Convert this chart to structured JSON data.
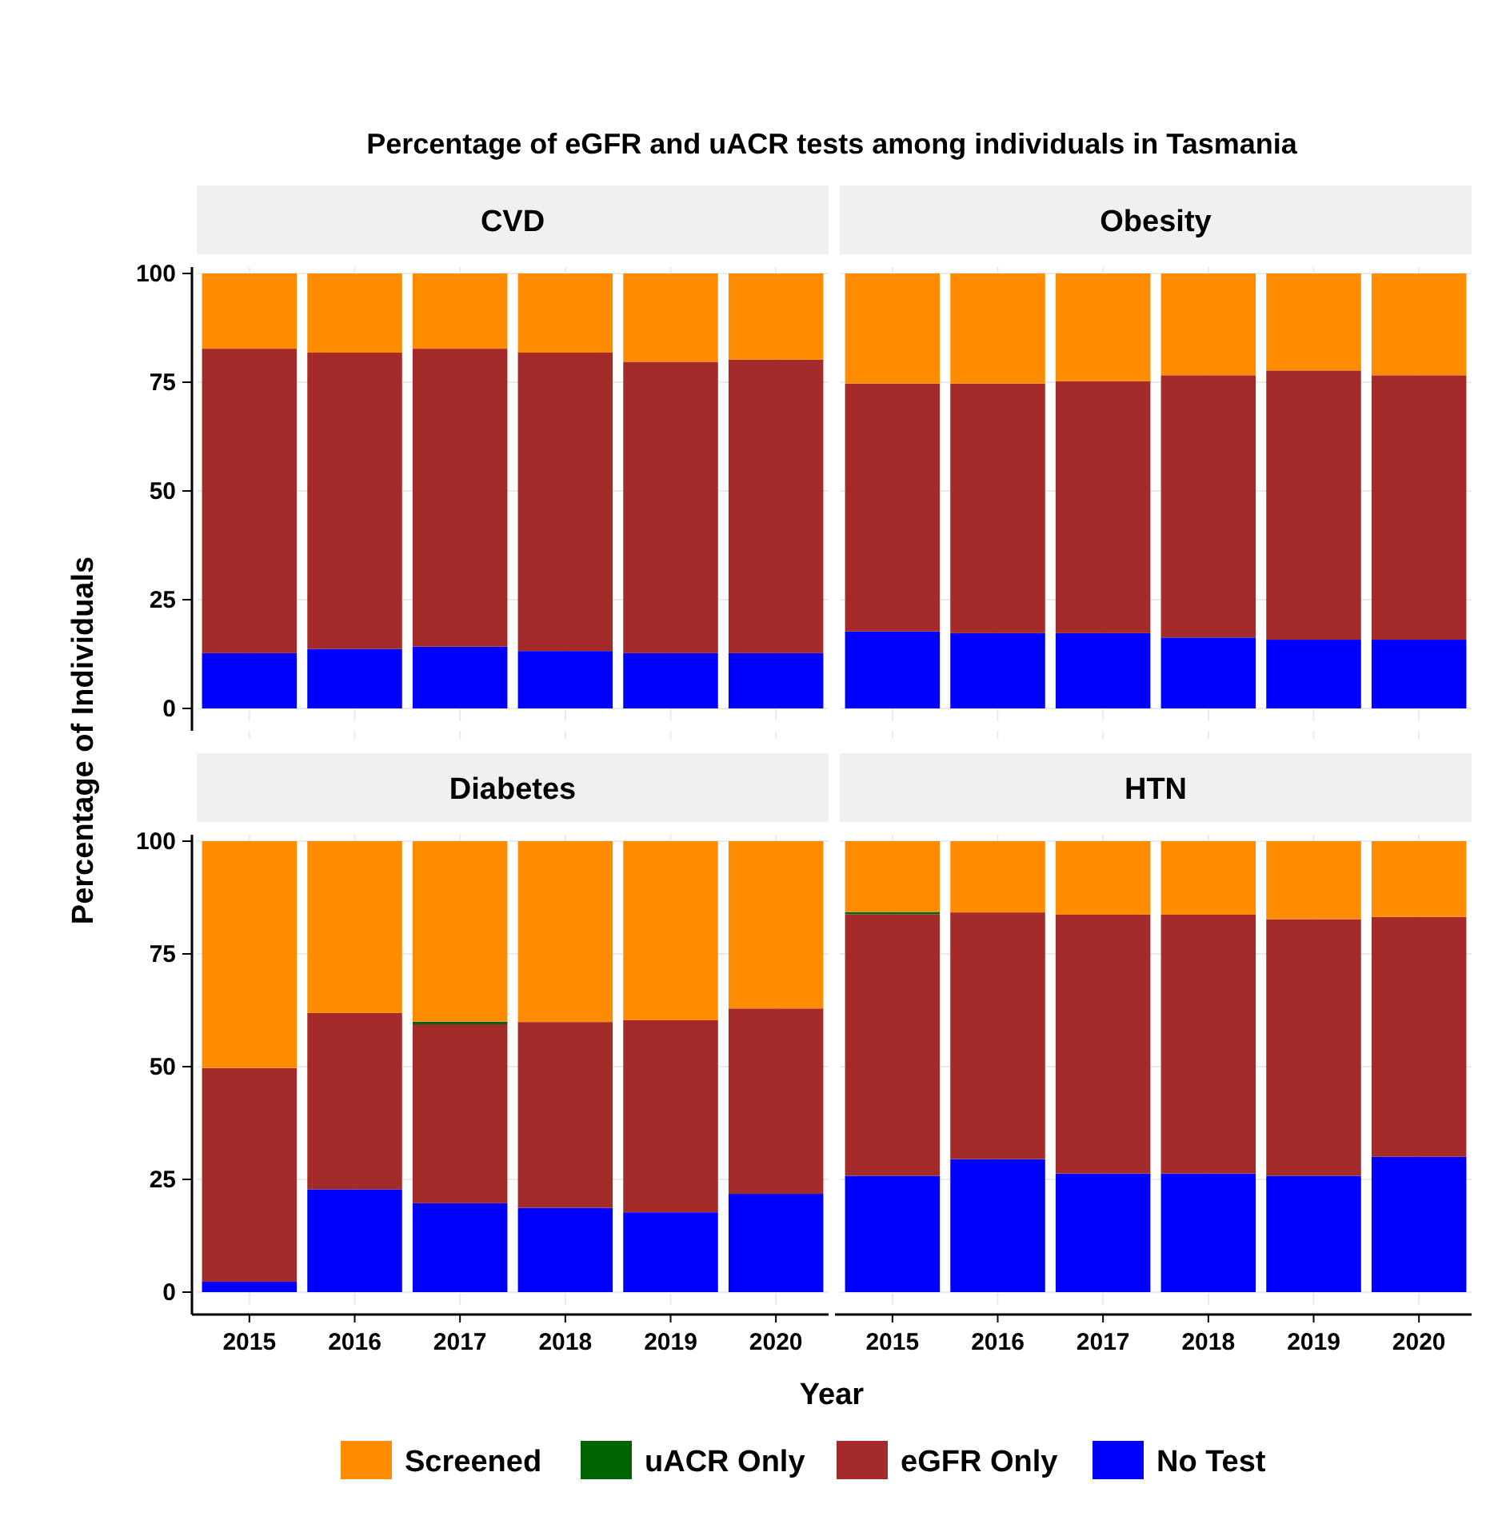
{
  "chart_data": [
    {
      "type": "bar",
      "title": "CVD",
      "annotations": [
        "Percentage of eGFR and uACR tests among individuals in Tasmania"
      ],
      "ylabel": "Percentage of Individuals",
      "legend": "bottom",
      "categories": [
        "2015",
        "2016",
        "2017",
        "2018",
        "2019",
        "2020"
      ],
      "stacked": true,
      "ylim": [
        0,
        100
      ],
      "yticks": [
        0,
        25,
        50,
        75,
        100
      ],
      "grid": true,
      "tick_labels": "y",
      "series": [
        {
          "name": "No Test",
          "color": "#0000ff",
          "values": [
            12.7,
            13.7,
            14.2,
            13.2,
            12.7,
            12.7
          ]
        },
        {
          "name": "eGFR Only",
          "color": "#a52a2a",
          "values": [
            70.0,
            68.1,
            68.5,
            68.6,
            67.0,
            67.5
          ]
        },
        {
          "name": "uACR Only",
          "color": "#006400",
          "values": [
            0,
            0,
            0,
            0,
            0,
            0
          ]
        },
        {
          "name": "Screened",
          "color": "#ff8c00",
          "values": [
            17.3,
            18.2,
            17.3,
            18.2,
            20.3,
            19.8
          ]
        }
      ]
    },
    {
      "type": "bar",
      "title": "Obesity",
      "categories": [
        "2015",
        "2016",
        "2017",
        "2018",
        "2019",
        "2020"
      ],
      "stacked": true,
      "ylim": [
        0,
        100
      ],
      "yticks": [
        0,
        25,
        50,
        75,
        100
      ],
      "grid": true,
      "tick_labels": false,
      "series": [
        {
          "color": "#0000ff",
          "values": [
            17.7,
            17.3,
            17.3,
            16.3,
            15.8,
            15.8
          ]
        },
        {
          "color": "#a52a2a",
          "values": [
            57.0,
            57.4,
            57.9,
            60.3,
            61.9,
            60.8
          ]
        },
        {
          "color": "#006400",
          "values": [
            0,
            0,
            0,
            0,
            0,
            0
          ]
        },
        {
          "color": "#ff8c00",
          "values": [
            25.3,
            25.3,
            24.8,
            23.4,
            22.3,
            23.4
          ]
        }
      ]
    },
    {
      "type": "bar",
      "title": "Diabetes",
      "xlabel": "Year",
      "categories": [
        "2015",
        "2016",
        "2017",
        "2018",
        "2019",
        "2020"
      ],
      "stacked": true,
      "ylim": [
        0,
        100
      ],
      "yticks": [
        0,
        25,
        50,
        75,
        100
      ],
      "grid": true,
      "series": [
        {
          "color": "#0000ff",
          "values": [
            2.3,
            22.8,
            19.7,
            18.7,
            17.7,
            21.8
          ]
        },
        {
          "color": "#a52a2a",
          "values": [
            47.4,
            39.1,
            39.7,
            41.2,
            42.6,
            41.1
          ]
        },
        {
          "color": "#006400",
          "values": [
            0,
            0,
            0.6,
            0,
            0,
            0
          ]
        },
        {
          "color": "#ff8c00",
          "values": [
            50.3,
            38.1,
            40.0,
            40.1,
            39.7,
            37.1
          ]
        }
      ]
    },
    {
      "type": "bar",
      "title": "HTN",
      "categories": [
        "2015",
        "2016",
        "2017",
        "2018",
        "2019",
        "2020"
      ],
      "stacked": true,
      "ylim": [
        0,
        100
      ],
      "yticks": [
        0,
        25,
        50,
        75,
        100
      ],
      "grid": true,
      "tick_labels": "x",
      "series": [
        {
          "color": "#0000ff",
          "values": [
            25.8,
            29.5,
            26.3,
            26.3,
            25.8,
            30.0
          ]
        },
        {
          "color": "#a52a2a",
          "values": [
            58.0,
            54.7,
            57.4,
            57.4,
            56.9,
            53.2
          ]
        },
        {
          "color": "#006400",
          "values": [
            0.5,
            0,
            0,
            0,
            0,
            0
          ]
        },
        {
          "color": "#ff8c00",
          "values": [
            15.7,
            15.8,
            16.3,
            16.3,
            17.3,
            16.8
          ]
        }
      ]
    }
  ]
}
